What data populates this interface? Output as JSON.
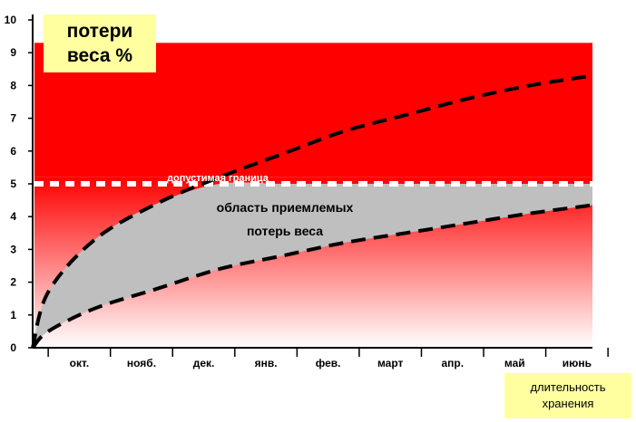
{
  "chart_data": {
    "type": "line",
    "ylabel_lines": [
      "потери",
      "веса %"
    ],
    "xlabel_lines": [
      "длительность",
      "хранения"
    ],
    "ylim": [
      0,
      10
    ],
    "yticks": [
      "0",
      "1",
      "2",
      "3",
      "4",
      "5",
      "6",
      "7",
      "8",
      "9",
      "10"
    ],
    "categories": [
      "окт.",
      "нояб.",
      "дек.",
      "янв.",
      "фев.",
      "март",
      "апр.",
      "май",
      "июнь"
    ],
    "x": [
      0,
      0.25,
      1,
      2,
      3,
      4,
      5,
      6,
      7,
      8,
      9
    ],
    "series": [
      {
        "values": [
          0,
          1.7,
          3.3,
          4.4,
          5.2,
          5.9,
          6.6,
          7.1,
          7.6,
          8.0,
          8.3
        ]
      },
      {
        "values": [
          0,
          0.5,
          1.2,
          1.8,
          2.4,
          2.8,
          3.2,
          3.5,
          3.8,
          4.1,
          4.35
        ]
      }
    ],
    "acceptable_band_upper": [
      0,
      1.7,
      3.3,
      4.4,
      5.0,
      5.0,
      5.0,
      5.0,
      5.0,
      5.0,
      5.0
    ],
    "limit": {
      "value": 5,
      "label": "допустимая граница"
    },
    "zones": {
      "red_upper": 9.3,
      "gradient_upper": 5.2
    },
    "area_label_lines": [
      "область приемлемых",
      "потерь веса"
    ],
    "colors": {
      "red": "#ff0000",
      "band": "#bfbfbf",
      "label_box": "#ffffa0",
      "curve": "#000000",
      "limit_line": "#ffffff"
    },
    "grid": false
  }
}
